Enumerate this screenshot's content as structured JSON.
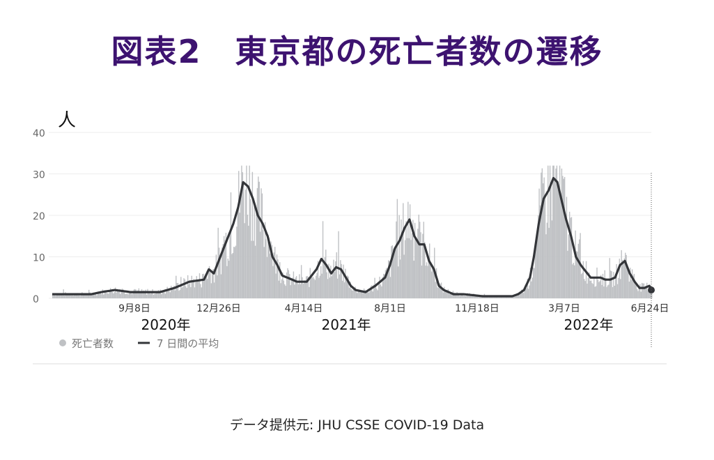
{
  "title": "図表2　東京都の死亡者数の遷移",
  "source": "データ提供元: JHU CSSE COVID-19 Data",
  "colors": {
    "title": "#3d1370",
    "bars": "#bfc1c4",
    "avg_line": "#333539",
    "grid": "#ececec"
  },
  "chart_data": {
    "type": "bar",
    "ylabel": "人",
    "ylim": [
      0,
      40
    ],
    "yticks": [
      0,
      10,
      20,
      30,
      40
    ],
    "xticks": [
      "9月8日",
      "12月26日",
      "4月14日",
      "8月1日",
      "11月18日",
      "3月7日",
      "6月24日"
    ],
    "year_labels": [
      "2020年",
      "2021年",
      "2022年"
    ],
    "legend": {
      "bars": "死亡者数",
      "line": "7 日間の平均",
      "position": "bottom-left"
    },
    "series": [
      {
        "name": "死亡者数",
        "kind": "bar",
        "points": [
          [
            0,
            1
          ],
          [
            30,
            1
          ],
          [
            40,
            1
          ],
          [
            50,
            1.5
          ],
          [
            64,
            2
          ],
          [
            80,
            1.5
          ],
          [
            96,
            1.5
          ],
          [
            110,
            1.5
          ],
          [
            125,
            2.5
          ],
          [
            140,
            4
          ],
          [
            155,
            4.5
          ],
          [
            160,
            7
          ],
          [
            165,
            6
          ],
          [
            170,
            9
          ],
          [
            175,
            12
          ],
          [
            185,
            18
          ],
          [
            190,
            22
          ],
          [
            195,
            28
          ],
          [
            200,
            27
          ],
          [
            205,
            24
          ],
          [
            210,
            20
          ],
          [
            215,
            18
          ],
          [
            220,
            15
          ],
          [
            225,
            10
          ],
          [
            230,
            8
          ],
          [
            235,
            5.5
          ],
          [
            240,
            5
          ],
          [
            250,
            4
          ],
          [
            260,
            4
          ],
          [
            270,
            7
          ],
          [
            275,
            9.5
          ],
          [
            280,
            8
          ],
          [
            285,
            6
          ],
          [
            290,
            7.5
          ],
          [
            295,
            7
          ],
          [
            300,
            5
          ],
          [
            305,
            3
          ],
          [
            310,
            2
          ],
          [
            320,
            1.5
          ],
          [
            330,
            3
          ],
          [
            340,
            5
          ],
          [
            345,
            8
          ],
          [
            350,
            12
          ],
          [
            355,
            14
          ],
          [
            360,
            17
          ],
          [
            365,
            19
          ],
          [
            370,
            15
          ],
          [
            375,
            13
          ],
          [
            380,
            13
          ],
          [
            385,
            9
          ],
          [
            390,
            7
          ],
          [
            395,
            3
          ],
          [
            400,
            2
          ],
          [
            405,
            1.5
          ],
          [
            410,
            1
          ],
          [
            420,
            1
          ],
          [
            440,
            0.5
          ],
          [
            450,
            0.5
          ],
          [
            460,
            0.5
          ],
          [
            470,
            0.5
          ],
          [
            476,
            1
          ],
          [
            482,
            2
          ],
          [
            488,
            5
          ],
          [
            492,
            10
          ],
          [
            497,
            18
          ],
          [
            502,
            24
          ],
          [
            507,
            26
          ],
          [
            512,
            29
          ],
          [
            516,
            28
          ],
          [
            520,
            24
          ],
          [
            525,
            19
          ],
          [
            530,
            15
          ],
          [
            535,
            10
          ],
          [
            540,
            8
          ],
          [
            545,
            6.5
          ],
          [
            550,
            5
          ],
          [
            560,
            5
          ],
          [
            565,
            4.5
          ],
          [
            570,
            4.5
          ],
          [
            575,
            5
          ],
          [
            580,
            8
          ],
          [
            585,
            9
          ],
          [
            590,
            6
          ],
          [
            595,
            4
          ],
          [
            600,
            2.5
          ],
          [
            605,
            2.5
          ],
          [
            610,
            3
          ],
          [
            612,
            2
          ]
        ]
      },
      {
        "name": "7 日間の平均",
        "kind": "line",
        "points": [
          [
            0,
            1
          ],
          [
            30,
            1
          ],
          [
            40,
            1
          ],
          [
            50,
            1.5
          ],
          [
            64,
            2
          ],
          [
            80,
            1.5
          ],
          [
            96,
            1.5
          ],
          [
            110,
            1.5
          ],
          [
            125,
            2.5
          ],
          [
            140,
            4
          ],
          [
            155,
            4.5
          ],
          [
            160,
            7
          ],
          [
            165,
            6
          ],
          [
            170,
            9
          ],
          [
            175,
            12
          ],
          [
            185,
            18
          ],
          [
            190,
            22
          ],
          [
            195,
            28
          ],
          [
            200,
            27
          ],
          [
            205,
            24
          ],
          [
            210,
            20
          ],
          [
            215,
            18
          ],
          [
            220,
            15
          ],
          [
            225,
            10
          ],
          [
            230,
            8
          ],
          [
            235,
            5.5
          ],
          [
            240,
            5
          ],
          [
            250,
            4
          ],
          [
            260,
            4
          ],
          [
            270,
            7
          ],
          [
            275,
            9.5
          ],
          [
            280,
            8
          ],
          [
            285,
            6
          ],
          [
            290,
            7.5
          ],
          [
            295,
            7
          ],
          [
            300,
            5
          ],
          [
            305,
            3
          ],
          [
            310,
            2
          ],
          [
            320,
            1.5
          ],
          [
            330,
            3
          ],
          [
            340,
            5
          ],
          [
            345,
            8
          ],
          [
            350,
            12
          ],
          [
            355,
            14
          ],
          [
            360,
            17
          ],
          [
            365,
            19
          ],
          [
            370,
            15
          ],
          [
            375,
            13
          ],
          [
            380,
            13
          ],
          [
            385,
            9
          ],
          [
            390,
            7
          ],
          [
            395,
            3
          ],
          [
            400,
            2
          ],
          [
            405,
            1.5
          ],
          [
            410,
            1
          ],
          [
            420,
            1
          ],
          [
            440,
            0.5
          ],
          [
            450,
            0.5
          ],
          [
            460,
            0.5
          ],
          [
            470,
            0.5
          ],
          [
            476,
            1
          ],
          [
            482,
            2
          ],
          [
            488,
            5
          ],
          [
            492,
            10
          ],
          [
            497,
            18
          ],
          [
            502,
            24
          ],
          [
            507,
            26
          ],
          [
            512,
            29
          ],
          [
            516,
            28
          ],
          [
            520,
            24
          ],
          [
            525,
            19
          ],
          [
            530,
            15
          ],
          [
            535,
            10
          ],
          [
            540,
            8
          ],
          [
            545,
            6.5
          ],
          [
            550,
            5
          ],
          [
            560,
            5
          ],
          [
            565,
            4.5
          ],
          [
            570,
            4.5
          ],
          [
            575,
            5
          ],
          [
            580,
            8
          ],
          [
            585,
            9
          ],
          [
            590,
            6
          ],
          [
            595,
            4
          ],
          [
            600,
            2.5
          ],
          [
            605,
            2.5
          ],
          [
            610,
            3
          ],
          [
            612,
            2
          ]
        ]
      }
    ]
  }
}
